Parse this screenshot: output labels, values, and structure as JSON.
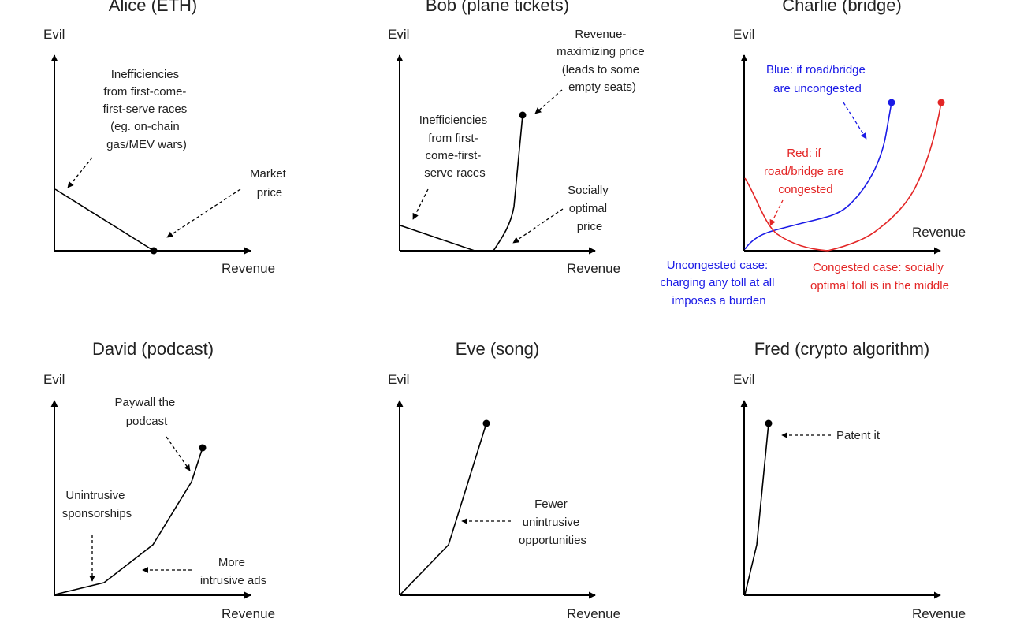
{
  "colors": {
    "ink": "#000000",
    "blue": "#1a1ae6",
    "red": "#e32626"
  },
  "panels": {
    "alice": {
      "title": "Alice (ETH)",
      "ylabel": "Evil",
      "xlabel": "Revenue",
      "note_inefficiency": [
        "Inefficiencies",
        "from first-come-",
        "first-serve races",
        "(eg. on-chain",
        "gas/MEV wars)"
      ],
      "note_market": [
        "Market",
        "price"
      ]
    },
    "bob": {
      "title": "Bob (plane tickets)",
      "ylabel": "Evil",
      "xlabel": "Revenue",
      "note_revenue_max": [
        "Revenue-",
        "maximizing price",
        "(leads to some",
        "empty seats)"
      ],
      "note_inefficiency": [
        "Inefficiencies",
        "from first-",
        "come-first-",
        "serve races"
      ],
      "note_social": [
        "Socially",
        "optimal",
        "price"
      ]
    },
    "charlie": {
      "title": "Charlie (bridge)",
      "ylabel": "Evil",
      "xlabel": "Revenue",
      "note_blue": [
        "Blue: if road/bridge",
        "are uncongested"
      ],
      "note_red": [
        "Red: if",
        "road/bridge are",
        "congested"
      ],
      "note_uncongested": [
        "Uncongested case:",
        "charging any toll at all",
        "imposes a burden"
      ],
      "note_congested": [
        "Congested case: socially",
        "optimal toll is in the middle"
      ]
    },
    "david": {
      "title": "David (podcast)",
      "ylabel": "Evil",
      "xlabel": "Revenue",
      "note_paywall": [
        "Paywall the",
        "podcast"
      ],
      "note_sponsor": [
        "Unintrusive",
        "sponsorships"
      ],
      "note_ads": [
        "More",
        "intrusive ads"
      ]
    },
    "eve": {
      "title": "Eve (song)",
      "ylabel": "Evil",
      "xlabel": "Revenue",
      "note_fewer": [
        "Fewer",
        "unintrusive",
        "opportunities"
      ]
    },
    "fred": {
      "title": "Fred (crypto algorithm)",
      "ylabel": "Evil",
      "xlabel": "Revenue",
      "note_patent": "Patent it"
    }
  }
}
